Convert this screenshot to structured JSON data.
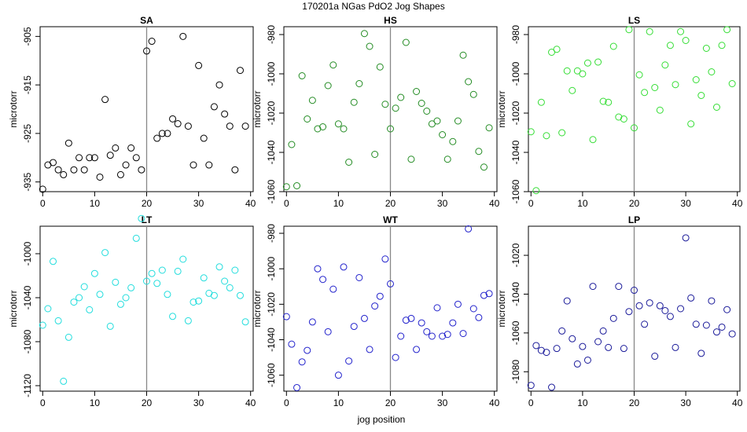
{
  "figure": {
    "title": "170201a   NGas PdO2 Jog Shapes",
    "xlabel": "jog position"
  },
  "chart_data": [
    {
      "type": "scatter",
      "title": "SA",
      "ylabel": "microtorr",
      "color": "#000000",
      "xlim": [
        -0.5,
        40.5
      ],
      "ylim": [
        -937,
        -903
      ],
      "xticks": [
        0,
        10,
        20,
        30,
        40
      ],
      "yticks": [
        -935,
        -925,
        -915,
        -905
      ],
      "vline": 20,
      "x": [
        0,
        1,
        2,
        3,
        4,
        5,
        6,
        7,
        8,
        9,
        10,
        11,
        12,
        13,
        14,
        15,
        16,
        17,
        18,
        19,
        20,
        21,
        22,
        23,
        24,
        25,
        26,
        27,
        28,
        29,
        30,
        31,
        32,
        33,
        34,
        35,
        36,
        37,
        38,
        39
      ],
      "y": [
        -936.5,
        -931.5,
        -931,
        -932.5,
        -933.5,
        -927,
        -932.5,
        -930,
        -932.5,
        -930,
        -930,
        -934,
        -918,
        -929.5,
        -928,
        -933.5,
        -931.5,
        -928,
        -930,
        -932.5,
        -908,
        -906,
        -926,
        -925,
        -925,
        -922,
        -923,
        -905,
        -923.5,
        -931.5,
        -911,
        -926,
        -931.5,
        -919.5,
        -915,
        -921,
        -923.5,
        -932.5,
        -912,
        -923.5
      ]
    },
    {
      "type": "scatter",
      "title": "HS",
      "ylabel": "microtorr",
      "color": "#228b22",
      "xlim": [
        -0.5,
        40.5
      ],
      "ylim": [
        -1060,
        -976
      ],
      "xticks": [
        0,
        10,
        20,
        30,
        40
      ],
      "yticks": [
        -1060,
        -1040,
        -1020,
        -1000,
        -980
      ],
      "vline": 20,
      "x": [
        0,
        1,
        2,
        3,
        4,
        5,
        6,
        7,
        8,
        9,
        10,
        11,
        12,
        13,
        14,
        15,
        16,
        17,
        18,
        19,
        20,
        21,
        22,
        23,
        24,
        25,
        26,
        27,
        28,
        29,
        30,
        31,
        32,
        33,
        34,
        35,
        36,
        37,
        38,
        39
      ],
      "y": [
        -1057.5,
        -1036,
        -1057,
        -1001,
        -1023,
        -1013.5,
        -1028,
        -1027,
        -1006,
        -995.5,
        -1025.5,
        -1028,
        -1045,
        -1014.5,
        -1005,
        -979.5,
        -986,
        -1041,
        -996.5,
        -1015.5,
        -1028,
        -1017.5,
        -1012,
        -984,
        -1043.5,
        -1009,
        -1015,
        -1019,
        -1025.5,
        -1024,
        -1031,
        -1043.5,
        -1034.5,
        -1024,
        -990.5,
        -1004,
        -1010.5,
        -1039.5,
        -1047.5,
        -1027.5
      ]
    },
    {
      "type": "scatter",
      "title": "LS",
      "ylabel": "microtorr",
      "color": "#33dd33",
      "xlim": [
        -0.5,
        40.5
      ],
      "ylim": [
        -1060,
        -976
      ],
      "xticks": [
        0,
        10,
        20,
        30,
        40
      ],
      "yticks": [
        -1060,
        -1040,
        -1020,
        -1000,
        -980
      ],
      "vline": 20,
      "x": [
        0,
        1,
        2,
        3,
        4,
        5,
        6,
        7,
        8,
        9,
        10,
        11,
        12,
        13,
        14,
        15,
        16,
        17,
        18,
        19,
        20,
        21,
        22,
        23,
        24,
        25,
        26,
        27,
        28,
        29,
        30,
        31,
        32,
        33,
        34,
        35,
        36,
        37,
        38,
        39
      ],
      "y": [
        -1029.5,
        -1059.5,
        -1014.5,
        -1031.5,
        -989,
        -987.5,
        -1030,
        -998.5,
        -1008.5,
        -998.5,
        -1000,
        -994.5,
        -1033.5,
        -994,
        -1014,
        -1014.5,
        -986,
        -1022,
        -1023,
        -977.5,
        -1027.5,
        -1000.5,
        -1009.5,
        -978.5,
        -1007,
        -1018.5,
        -995.5,
        -985.5,
        -1005.5,
        -978.5,
        -983,
        -1025.5,
        -1003,
        -1011,
        -987,
        -999,
        -1017,
        -985.5,
        -977.5,
        -1005
      ]
    },
    {
      "type": "scatter",
      "title": "LT",
      "ylabel": "microtorr",
      "color": "#22dddd",
      "xlim": [
        -0.5,
        40.5
      ],
      "ylim": [
        -1125,
        -975
      ],
      "xticks": [
        0,
        10,
        20,
        30,
        40
      ],
      "yticks": [
        -1120,
        -1080,
        -1040,
        -1000
      ],
      "vline": 20,
      "x": [
        0,
        1,
        2,
        3,
        4,
        5,
        6,
        7,
        8,
        9,
        10,
        11,
        12,
        13,
        14,
        15,
        16,
        17,
        18,
        19,
        20,
        21,
        22,
        23,
        24,
        25,
        26,
        27,
        28,
        29,
        30,
        31,
        32,
        33,
        34,
        35,
        36,
        37,
        38,
        39
      ],
      "y": [
        -1065,
        -1050,
        -1007,
        -1061,
        -1116,
        -1076,
        -1044,
        -1040,
        -1030,
        -1051,
        -1018,
        -1037,
        -999,
        -1066,
        -1026,
        -1046,
        -1040,
        -1031,
        -986,
        -968,
        -1025,
        -1018,
        -1027,
        -1015,
        -1037,
        -1057,
        -1016,
        -1005,
        -1061,
        -1044,
        -1043,
        -1022,
        -1036,
        -1038,
        -1012,
        -1025,
        -1031,
        -1015,
        -1038,
        -1062
      ]
    },
    {
      "type": "scatter",
      "title": "WT",
      "ylabel": "microtorr",
      "color": "#2222cc",
      "xlim": [
        -0.5,
        40.5
      ],
      "ylim": [
        -1069,
        -976
      ],
      "xticks": [
        0,
        10,
        20,
        30,
        40
      ],
      "yticks": [
        -1060,
        -1040,
        -1020,
        -1000,
        -980
      ],
      "vline": 20,
      "x": [
        0,
        1,
        2,
        3,
        4,
        5,
        6,
        7,
        8,
        9,
        10,
        11,
        12,
        13,
        14,
        15,
        16,
        17,
        18,
        19,
        20,
        21,
        22,
        23,
        24,
        25,
        26,
        27,
        28,
        29,
        30,
        31,
        32,
        33,
        34,
        35,
        36,
        37,
        38,
        39
      ],
      "y": [
        -1027,
        -1042.5,
        -1067,
        -1052.5,
        -1046,
        -1030,
        -1000,
        -1006,
        -1035.5,
        -1011.5,
        -1060,
        -999,
        -1052,
        -1032.5,
        -1005,
        -1028,
        -1045.5,
        -1021,
        -1015.5,
        -994.5,
        -1008.5,
        -1050,
        -1038,
        -1029,
        -1028,
        -1045.5,
        -1030.5,
        -1035.5,
        -1038,
        -1022,
        -1038,
        -1037,
        -1030.5,
        -1020,
        -1036.5,
        -977.5,
        -1022.5,
        -1027.5,
        -1015,
        -1014
      ]
    },
    {
      "type": "scatter",
      "title": "LP",
      "ylabel": "microtorr",
      "color": "#1a1a99",
      "xlim": [
        -0.5,
        40.5
      ],
      "ylim": [
        -1090,
        -1005
      ],
      "xticks": [
        0,
        10,
        20,
        30,
        40
      ],
      "yticks": [
        -1080,
        -1060,
        -1040,
        -1020
      ],
      "vline": 20,
      "x": [
        0,
        1,
        2,
        3,
        4,
        5,
        6,
        7,
        8,
        9,
        10,
        11,
        12,
        13,
        14,
        15,
        16,
        17,
        18,
        19,
        20,
        21,
        22,
        23,
        24,
        25,
        26,
        27,
        28,
        29,
        30,
        31,
        32,
        33,
        34,
        35,
        36,
        37,
        38,
        39
      ],
      "y": [
        -1087,
        -1066.5,
        -1069,
        -1070,
        -1088,
        -1068,
        -1059,
        -1043.5,
        -1063,
        -1076,
        -1067,
        -1074,
        -1036,
        -1064.5,
        -1059,
        -1067.5,
        -1052.5,
        -1036,
        -1068,
        -1049,
        -1038,
        -1046,
        -1055.5,
        -1044.5,
        -1072,
        -1046,
        -1048.5,
        -1051.5,
        -1067.5,
        -1047.5,
        -1011,
        -1042,
        -1055.5,
        -1070.5,
        -1056,
        -1043.5,
        -1059.5,
        -1057,
        -1048,
        -1060.5
      ]
    }
  ]
}
